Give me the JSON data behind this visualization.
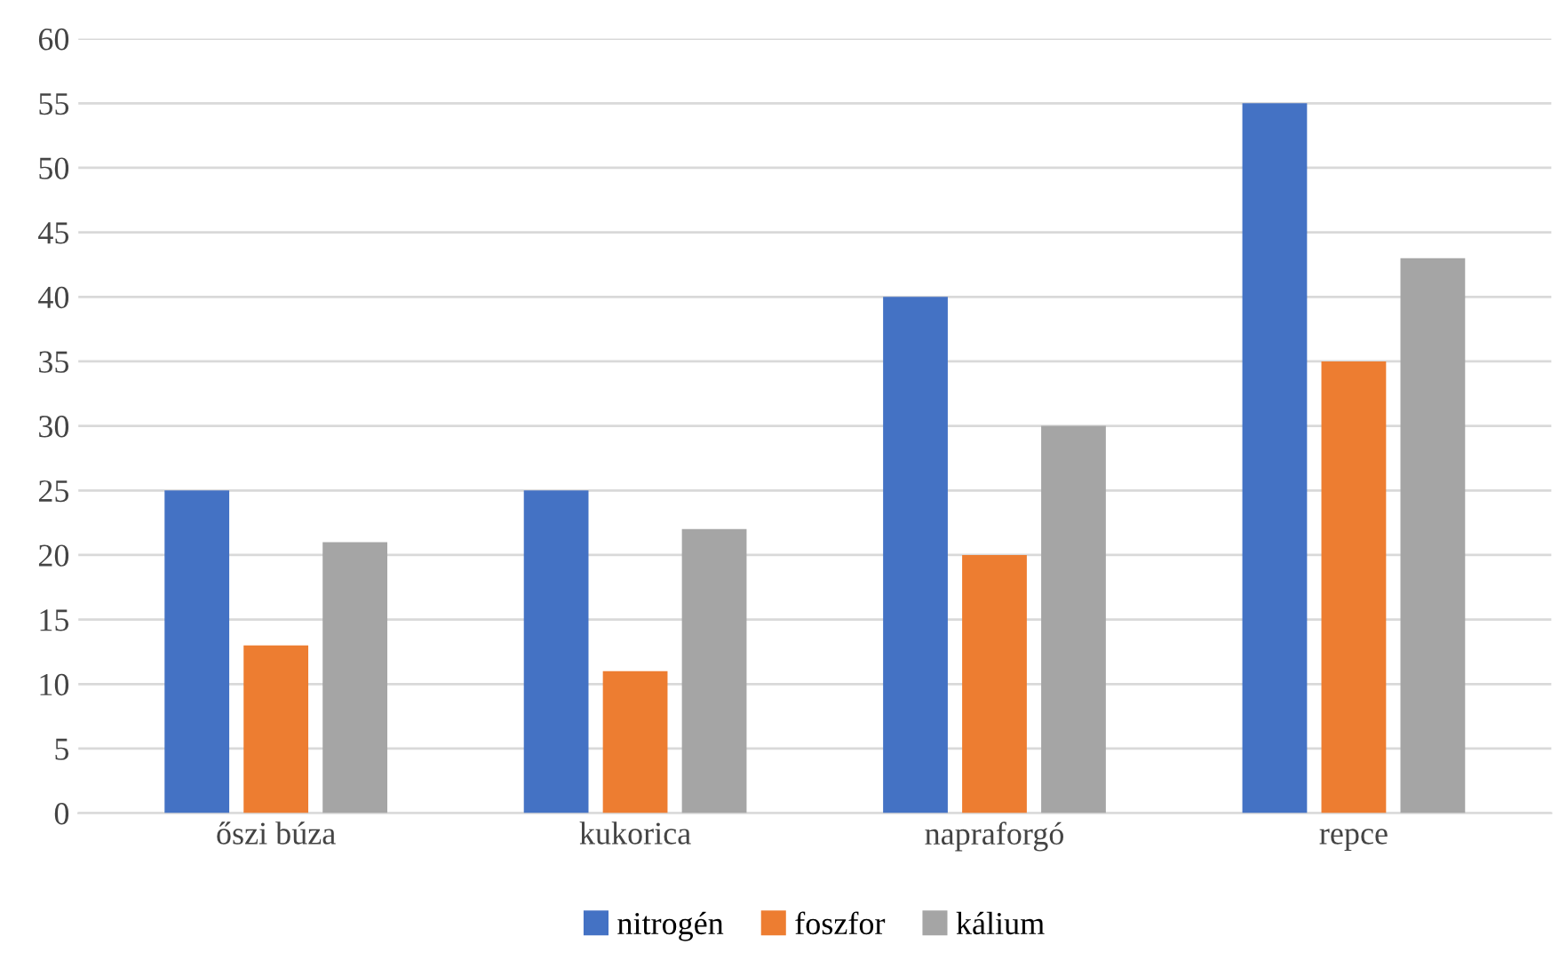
{
  "chart_data": {
    "type": "bar",
    "categories": [
      "őszi búza",
      "kukorica",
      "napraforgó",
      "repce"
    ],
    "series": [
      {
        "name": "nitrogén",
        "color": "#4472c4",
        "values": [
          25,
          25,
          40,
          55
        ]
      },
      {
        "name": "foszfor",
        "color": "#ed7d31",
        "values": [
          13,
          11,
          20,
          35
        ]
      },
      {
        "name": "kálium",
        "color": "#a5a5a5",
        "values": [
          21,
          22,
          30,
          43
        ]
      }
    ],
    "ylim": [
      0,
      60
    ],
    "yticks": [
      0,
      5,
      10,
      15,
      20,
      25,
      30,
      35,
      40,
      45,
      50,
      55,
      60
    ],
    "grid": "y",
    "legend": "bottom"
  }
}
